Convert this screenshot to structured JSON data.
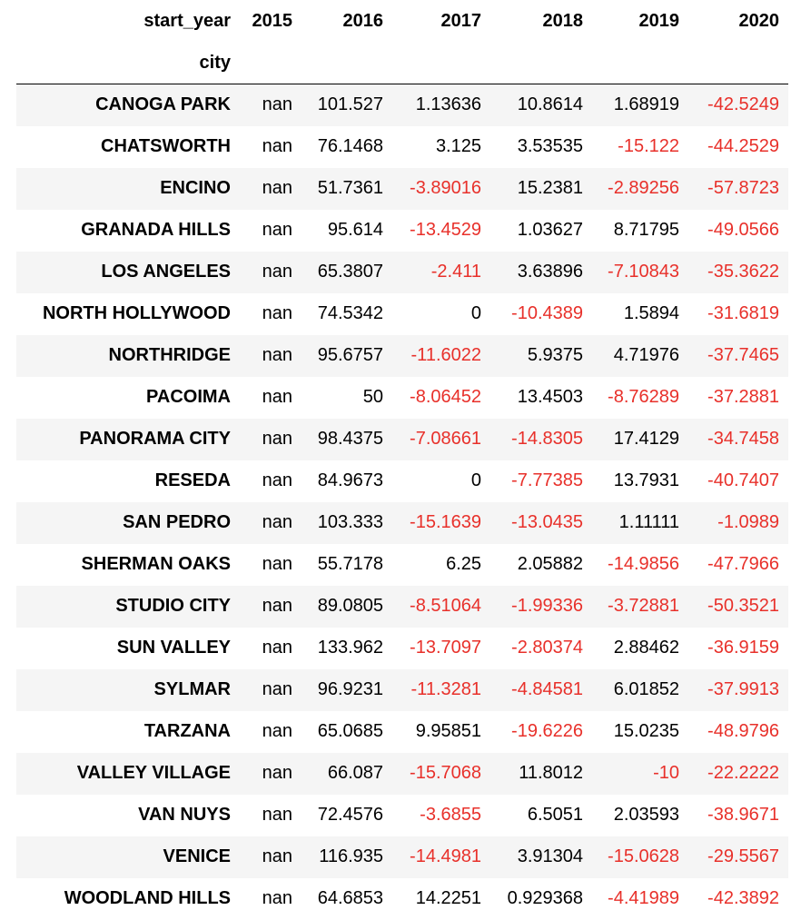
{
  "table": {
    "column_index_name": "start_year",
    "row_index_name": "city",
    "columns": [
      "2015",
      "2016",
      "2017",
      "2018",
      "2019",
      "2020"
    ],
    "negative_color": "#e8302a",
    "rows": [
      {
        "city": "CANOGA PARK",
        "values": [
          "nan",
          "101.527",
          "1.13636",
          "10.8614",
          "1.68919",
          "-42.5249"
        ]
      },
      {
        "city": "CHATSWORTH",
        "values": [
          "nan",
          "76.1468",
          "3.125",
          "3.53535",
          "-15.122",
          "-44.2529"
        ]
      },
      {
        "city": "ENCINO",
        "values": [
          "nan",
          "51.7361",
          "-3.89016",
          "15.2381",
          "-2.89256",
          "-57.8723"
        ]
      },
      {
        "city": "GRANADA HILLS",
        "values": [
          "nan",
          "95.614",
          "-13.4529",
          "1.03627",
          "8.71795",
          "-49.0566"
        ]
      },
      {
        "city": "LOS ANGELES",
        "values": [
          "nan",
          "65.3807",
          "-2.411",
          "3.63896",
          "-7.10843",
          "-35.3622"
        ]
      },
      {
        "city": "NORTH HOLLYWOOD",
        "values": [
          "nan",
          "74.5342",
          "0",
          "-10.4389",
          "1.5894",
          "-31.6819"
        ]
      },
      {
        "city": "NORTHRIDGE",
        "values": [
          "nan",
          "95.6757",
          "-11.6022",
          "5.9375",
          "4.71976",
          "-37.7465"
        ]
      },
      {
        "city": "PACOIMA",
        "values": [
          "nan",
          "50",
          "-8.06452",
          "13.4503",
          "-8.76289",
          "-37.2881"
        ]
      },
      {
        "city": "PANORAMA CITY",
        "values": [
          "nan",
          "98.4375",
          "-7.08661",
          "-14.8305",
          "17.4129",
          "-34.7458"
        ]
      },
      {
        "city": "RESEDA",
        "values": [
          "nan",
          "84.9673",
          "0",
          "-7.77385",
          "13.7931",
          "-40.7407"
        ]
      },
      {
        "city": "SAN PEDRO",
        "values": [
          "nan",
          "103.333",
          "-15.1639",
          "-13.0435",
          "1.11111",
          "-1.0989"
        ]
      },
      {
        "city": "SHERMAN OAKS",
        "values": [
          "nan",
          "55.7178",
          "6.25",
          "2.05882",
          "-14.9856",
          "-47.7966"
        ]
      },
      {
        "city": "STUDIO CITY",
        "values": [
          "nan",
          "89.0805",
          "-8.51064",
          "-1.99336",
          "-3.72881",
          "-50.3521"
        ]
      },
      {
        "city": "SUN VALLEY",
        "values": [
          "nan",
          "133.962",
          "-13.7097",
          "-2.80374",
          "2.88462",
          "-36.9159"
        ]
      },
      {
        "city": "SYLMAR",
        "values": [
          "nan",
          "96.9231",
          "-11.3281",
          "-4.84581",
          "6.01852",
          "-37.9913"
        ]
      },
      {
        "city": "TARZANA",
        "values": [
          "nan",
          "65.0685",
          "9.95851",
          "-19.6226",
          "15.0235",
          "-48.9796"
        ]
      },
      {
        "city": "VALLEY VILLAGE",
        "values": [
          "nan",
          "66.087",
          "-15.7068",
          "11.8012",
          "-10",
          "-22.2222"
        ]
      },
      {
        "city": "VAN NUYS",
        "values": [
          "nan",
          "72.4576",
          "-3.6855",
          "6.5051",
          "2.03593",
          "-38.9671"
        ]
      },
      {
        "city": "VENICE",
        "values": [
          "nan",
          "116.935",
          "-14.4981",
          "3.91304",
          "-15.0628",
          "-29.5567"
        ]
      },
      {
        "city": "WOODLAND HILLS",
        "values": [
          "nan",
          "64.6853",
          "14.2251",
          "0.929368",
          "-4.41989",
          "-42.3892"
        ]
      }
    ]
  }
}
